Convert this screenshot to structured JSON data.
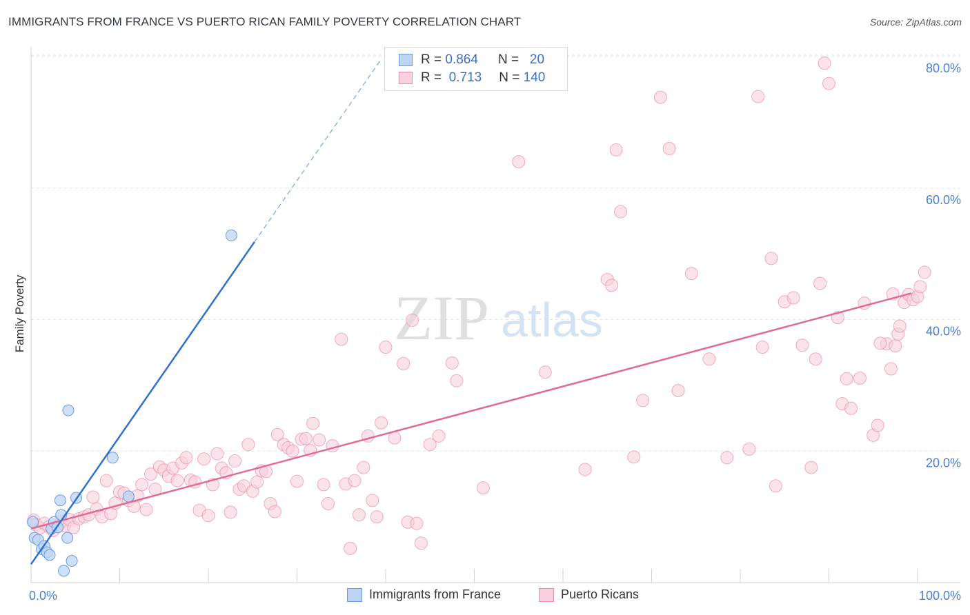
{
  "title": "IMMIGRANTS FROM FRANCE VS PUERTO RICAN FAMILY POVERTY CORRELATION CHART",
  "source": "Source: ZipAtlas.com",
  "watermark": {
    "zip": "ZIP",
    "atlas": "atlas"
  },
  "legend_stats": [
    {
      "r_label": "R =",
      "r_value": "0.864",
      "n_label": "N =",
      "n_value": "20",
      "color": "#a9c7ef",
      "border": "#6c9ad8"
    },
    {
      "r_label": "R =",
      "r_value": "0.713",
      "n_label": "N =",
      "n_value": "140",
      "color": "#f7c2d2",
      "border": "#e88aa8"
    }
  ],
  "bottom_legend": [
    {
      "label": "Immigrants from France",
      "color": "#bdd5f4",
      "border": "#6c9ad8"
    },
    {
      "label": "Puerto Ricans",
      "color": "#f9d0dc",
      "border": "#e88aa8"
    }
  ],
  "chart_data": {
    "type": "scatter",
    "ylabel": "Family Poverty",
    "xlabel": "",
    "xlim": [
      0,
      100
    ],
    "ylim": [
      0,
      80
    ],
    "x_tick_labels": [
      {
        "value": 0,
        "label": "0.0%"
      },
      {
        "value": 100,
        "label": "100.0%"
      }
    ],
    "y_tick_labels": [
      {
        "value": 20,
        "label": "20.0%"
      },
      {
        "value": 40,
        "label": "40.0%"
      },
      {
        "value": 60,
        "label": "60.0%"
      },
      {
        "value": 80,
        "label": "80.0%"
      }
    ],
    "grid": "horizontal dashed",
    "series": [
      {
        "name": "Immigrants from France",
        "color": "#6c9ad8",
        "fill": "#bdd5f4",
        "trend": {
          "x0": 0,
          "y0": 2.8,
          "x1": 25.2,
          "y1": 51.8,
          "dash_to_x": 39.5
        },
        "points": [
          [
            0.2,
            9.2
          ],
          [
            0.4,
            6.8
          ],
          [
            0.8,
            6.5
          ],
          [
            1.2,
            5.1
          ],
          [
            1.5,
            5.6
          ],
          [
            1.8,
            4.6
          ],
          [
            2.1,
            4.2
          ],
          [
            2.3,
            8.2
          ],
          [
            2.6,
            9.2
          ],
          [
            3.0,
            8.4
          ],
          [
            3.3,
            12.5
          ],
          [
            3.4,
            10.3
          ],
          [
            3.7,
            1.8
          ],
          [
            4.1,
            6.8
          ],
          [
            4.2,
            26.2
          ],
          [
            4.6,
            3.3
          ],
          [
            5.1,
            12.9
          ],
          [
            9.2,
            19.0
          ],
          [
            11.0,
            13.1
          ],
          [
            22.6,
            52.8
          ]
        ]
      },
      {
        "name": "Puerto Ricans",
        "color": "#e88aa8",
        "fill": "#f9d0dc",
        "trend": {
          "x0": 0,
          "y0": 8.2,
          "x1": 99.3,
          "y1": 44.0
        },
        "points": [
          [
            0.3,
            9.5
          ],
          [
            0.6,
            8.8
          ],
          [
            1.0,
            8.3
          ],
          [
            1.5,
            9.0
          ],
          [
            2.0,
            8.5
          ],
          [
            2.5,
            7.9
          ],
          [
            3.0,
            8.6
          ],
          [
            3.4,
            9.3
          ],
          [
            3.8,
            8.7
          ],
          [
            4.3,
            9.6
          ],
          [
            4.8,
            8.4
          ],
          [
            5.4,
            9.7
          ],
          [
            6.0,
            10.0
          ],
          [
            6.5,
            10.3
          ],
          [
            7.0,
            13.0
          ],
          [
            7.4,
            11.2
          ],
          [
            8.0,
            10.0
          ],
          [
            8.5,
            15.5
          ],
          [
            9.0,
            10.5
          ],
          [
            9.5,
            12.1
          ],
          [
            10.0,
            13.8
          ],
          [
            10.5,
            13.6
          ],
          [
            11.0,
            12.5
          ],
          [
            11.6,
            11.6
          ],
          [
            12.0,
            13.2
          ],
          [
            12.5,
            14.9
          ],
          [
            13.0,
            11.1
          ],
          [
            13.5,
            16.5
          ],
          [
            14.0,
            14.2
          ],
          [
            14.5,
            17.6
          ],
          [
            15.0,
            17.1
          ],
          [
            15.5,
            16.2
          ],
          [
            16.0,
            17.4
          ],
          [
            16.5,
            15.5
          ],
          [
            17.0,
            18.2
          ],
          [
            17.5,
            19.0
          ],
          [
            18.0,
            15.6
          ],
          [
            18.5,
            15.3
          ],
          [
            19.0,
            11.0
          ],
          [
            19.5,
            18.8
          ],
          [
            20.0,
            10.2
          ],
          [
            20.5,
            14.9
          ],
          [
            21.0,
            19.6
          ],
          [
            21.5,
            17.4
          ],
          [
            22.0,
            16.7
          ],
          [
            22.5,
            10.7
          ],
          [
            23.0,
            18.5
          ],
          [
            23.5,
            14.2
          ],
          [
            24.0,
            14.7
          ],
          [
            24.5,
            21.0
          ],
          [
            25.0,
            13.9
          ],
          [
            25.5,
            15.3
          ],
          [
            26.0,
            17.0
          ],
          [
            26.5,
            16.9
          ],
          [
            27.0,
            12.0
          ],
          [
            27.5,
            10.8
          ],
          [
            27.8,
            22.5
          ],
          [
            28.5,
            21.0
          ],
          [
            29.0,
            20.5
          ],
          [
            29.5,
            20.0
          ],
          [
            30.0,
            15.4
          ],
          [
            30.5,
            21.8
          ],
          [
            31.0,
            21.9
          ],
          [
            31.5,
            20.1
          ],
          [
            31.8,
            24.2
          ],
          [
            32.5,
            21.7
          ],
          [
            33.0,
            14.9
          ],
          [
            33.5,
            12.0
          ],
          [
            34.0,
            20.8
          ],
          [
            35.0,
            37.0
          ],
          [
            35.5,
            15.0
          ],
          [
            36.0,
            5.2
          ],
          [
            36.5,
            15.5
          ],
          [
            37.0,
            10.3
          ],
          [
            37.5,
            17.5
          ],
          [
            38.0,
            22.3
          ],
          [
            38.5,
            12.5
          ],
          [
            39.0,
            10.0
          ],
          [
            39.5,
            24.3
          ],
          [
            40.0,
            35.8
          ],
          [
            41.0,
            22.0
          ],
          [
            42.0,
            33.3
          ],
          [
            42.5,
            9.2
          ],
          [
            43.0,
            39.9
          ],
          [
            43.5,
            9.0
          ],
          [
            44.0,
            6.0
          ],
          [
            45.0,
            21.0
          ],
          [
            46.0,
            22.3
          ],
          [
            47.5,
            33.4
          ],
          [
            48.0,
            30.7
          ],
          [
            51.0,
            14.4
          ],
          [
            55.0,
            64.0
          ],
          [
            58.0,
            32.0
          ],
          [
            62.5,
            17.2
          ],
          [
            65.0,
            46.1
          ],
          [
            65.5,
            45.2
          ],
          [
            66.0,
            65.8
          ],
          [
            66.5,
            56.4
          ],
          [
            69.0,
            27.7
          ],
          [
            68.0,
            19.1
          ],
          [
            71.0,
            73.8
          ],
          [
            72.0,
            66.0
          ],
          [
            73.0,
            29.2
          ],
          [
            74.5,
            47.0
          ],
          [
            76.5,
            34.0
          ],
          [
            78.5,
            19.0
          ],
          [
            81.0,
            20.3
          ],
          [
            82.0,
            73.9
          ],
          [
            82.5,
            35.8
          ],
          [
            83.5,
            49.3
          ],
          [
            84.0,
            14.7
          ],
          [
            85.0,
            42.7
          ],
          [
            86.0,
            43.3
          ],
          [
            87.0,
            36.1
          ],
          [
            88.0,
            17.5
          ],
          [
            88.5,
            34.0
          ],
          [
            89.0,
            45.5
          ],
          [
            89.5,
            79.0
          ],
          [
            90.0,
            75.9
          ],
          [
            91.0,
            40.3
          ],
          [
            91.5,
            27.2
          ],
          [
            92.0,
            31.0
          ],
          [
            92.5,
            26.5
          ],
          [
            93.5,
            31.1
          ],
          [
            94.0,
            42.5
          ],
          [
            95.0,
            22.4
          ],
          [
            95.5,
            23.9
          ],
          [
            96.5,
            36.3
          ],
          [
            97.0,
            32.5
          ],
          [
            97.5,
            36.0
          ],
          [
            97.8,
            37.8
          ],
          [
            98.0,
            39.0
          ],
          [
            98.5,
            42.6
          ],
          [
            99.0,
            43.8
          ],
          [
            99.5,
            43.0
          ],
          [
            100.0,
            43.5
          ],
          [
            100.3,
            45.0
          ],
          [
            100.8,
            47.2
          ],
          [
            95.8,
            36.4
          ],
          [
            97.2,
            43.9
          ]
        ]
      }
    ]
  }
}
